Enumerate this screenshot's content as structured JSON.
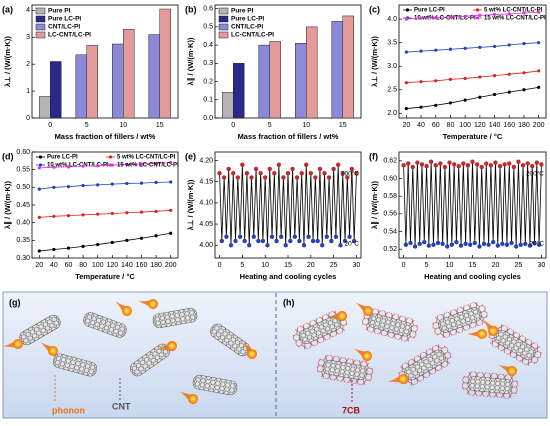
{
  "chart_data": [
    {
      "type": "bar",
      "label": "(a)",
      "xlabel": "Mass fraction of fillers / wt%",
      "ylabel": "λ⊥ / (W/(m·K))",
      "categories": [
        "0",
        "5",
        "10",
        "15"
      ],
      "ylim": [
        0,
        4.2
      ],
      "yticks": [
        0,
        1,
        2,
        3,
        4
      ],
      "legend": "upper left",
      "series": [
        {
          "name": "Pure PI",
          "color": "#b5b5b5",
          "values": [
            0.8,
            null,
            null,
            null
          ]
        },
        {
          "name": "Pure LC-PI",
          "color": "#2a2a8a",
          "values": [
            2.1,
            null,
            null,
            null
          ]
        },
        {
          "name": "CNT/LC-PI",
          "color": "#8a8ad8",
          "values": [
            null,
            2.35,
            2.75,
            3.1
          ]
        },
        {
          "name": "LC-CNT/LC-PI",
          "color": "#e39a9a",
          "values": [
            null,
            2.7,
            3.3,
            4.05
          ]
        }
      ]
    },
    {
      "type": "bar",
      "label": "(b)",
      "xlabel": "Mass fraction of fillers / wt%",
      "ylabel": "λ∥ / (W/(m·K))",
      "categories": [
        "0",
        "5",
        "10",
        "15"
      ],
      "ylim": [
        0,
        0.62
      ],
      "yticks": [
        {
          "value": 0,
          "label": "0.0"
        },
        0.1,
        0.2,
        0.3,
        0.4,
        0.5,
        0.6
      ],
      "legend": "upper left",
      "series": [
        {
          "name": "Pure PI",
          "color": "#b5b5b5",
          "values": [
            0.14,
            null,
            null,
            null
          ]
        },
        {
          "name": "Pure LC-PI",
          "color": "#2a2a8a",
          "values": [
            0.3,
            null,
            null,
            null
          ]
        },
        {
          "name": "CNT/LC-PI",
          "color": "#8a8ad8",
          "values": [
            null,
            0.4,
            0.41,
            0.53
          ]
        },
        {
          "name": "LC-CNT/LC-PI",
          "color": "#e39a9a",
          "values": [
            null,
            0.42,
            0.5,
            0.56
          ]
        }
      ]
    },
    {
      "type": "line",
      "label": "(c)",
      "xlabel": "Temperature / °C",
      "ylabel": "λ⊥ / (W/(m·K))",
      "x": [
        20,
        40,
        60,
        80,
        100,
        120,
        140,
        160,
        180,
        200
      ],
      "xlim": [
        10,
        210
      ],
      "xticks": [
        20,
        40,
        60,
        80,
        100,
        120,
        140,
        160,
        180,
        200
      ],
      "ylim": [
        1.9,
        4.3
      ],
      "yticks": [
        {
          "value": 2,
          "label": "2.0"
        },
        2.5,
        {
          "value": 3,
          "label": "3.0"
        },
        3.5,
        {
          "value": 4,
          "label": "4.0"
        }
      ],
      "legend": "upper",
      "series": [
        {
          "name": "Pure LC-PI",
          "color": "#000000",
          "values": [
            2.1,
            2.13,
            2.17,
            2.22,
            2.28,
            2.34,
            2.4,
            2.45,
            2.5,
            2.55
          ]
        },
        {
          "name": "5 wt% LC-CNT/LC-PI",
          "color": "#e02020",
          "values": [
            2.65,
            2.67,
            2.69,
            2.72,
            2.74,
            2.77,
            2.8,
            2.83,
            2.86,
            2.9
          ]
        },
        {
          "name": "10 wt% LC-CNT/LC-PI",
          "color": "#2040c0",
          "values": [
            3.3,
            3.32,
            3.34,
            3.36,
            3.38,
            3.4,
            3.42,
            3.45,
            3.48,
            3.5
          ]
        },
        {
          "name": "15 wt% LC-CNT/LC-PI",
          "color": "#e030e0",
          "values": [
            4.0,
            4.02,
            4.03,
            4.05,
            4.06,
            4.08,
            4.1,
            4.11,
            4.13,
            4.15
          ]
        }
      ]
    },
    {
      "type": "line",
      "label": "(d)",
      "xlabel": "Temperature / °C",
      "ylabel": "λ∥ / (W/(m·K))",
      "x": [
        20,
        40,
        60,
        80,
        100,
        120,
        140,
        160,
        180,
        200
      ],
      "xlim": [
        10,
        210
      ],
      "xticks": [
        20,
        40,
        60,
        80,
        100,
        120,
        140,
        160,
        180,
        200
      ],
      "ylim": [
        0.3,
        0.6
      ],
      "yticks": [
        {
          "value": 0.3,
          "label": "0.30"
        },
        0.35,
        {
          "value": 0.4,
          "label": "0.40"
        },
        0.45,
        {
          "value": 0.5,
          "label": "0.50"
        },
        0.55,
        {
          "value": 0.6,
          "label": "0.60"
        }
      ],
      "legend": "upper",
      "series": [
        {
          "name": "Pure LC-PI",
          "color": "#000000",
          "values": [
            0.32,
            0.324,
            0.328,
            0.333,
            0.338,
            0.344,
            0.35,
            0.356,
            0.363,
            0.37
          ]
        },
        {
          "name": "5 wt% LC-CNT/LC-PI",
          "color": "#e02020",
          "values": [
            0.415,
            0.418,
            0.42,
            0.422,
            0.424,
            0.426,
            0.428,
            0.43,
            0.432,
            0.435
          ]
        },
        {
          "name": "10 wt% LC-CNT/LC-PI",
          "color": "#2040c0",
          "values": [
            0.495,
            0.5,
            0.502,
            0.505,
            0.507,
            0.509,
            0.511,
            0.512,
            0.514,
            0.515
          ]
        },
        {
          "name": "15 wt% LC-CNT/LC-PI",
          "color": "#e030e0",
          "values": [
            0.555,
            0.557,
            0.558,
            0.56,
            0.561,
            0.563,
            0.565,
            0.566,
            0.568,
            0.57
          ]
        }
      ]
    },
    {
      "type": "line",
      "label": "(e)",
      "xlabel": "Heating and cooling cycles",
      "ylabel": "λ⊥ / (W/(m·K))",
      "annotations": [
        "200°C",
        "20°C"
      ],
      "marker_colors": [
        "#e02020",
        "#2040d0"
      ],
      "x": [
        0,
        0.5,
        1,
        1.5,
        2,
        2.5,
        3,
        3.5,
        4,
        4.5,
        5,
        5.5,
        6,
        6.5,
        7,
        7.5,
        8,
        8.5,
        9,
        9.5,
        10,
        10.5,
        11,
        11.5,
        12,
        12.5,
        13,
        13.5,
        14,
        14.5,
        15,
        15.5,
        16,
        16.5,
        17,
        17.5,
        18,
        18.5,
        19,
        19.5,
        20,
        20.5,
        21,
        21.5,
        22,
        22.5,
        23,
        23.5,
        24,
        24.5,
        25,
        25.5,
        26,
        26.5,
        27,
        27.5,
        28,
        28.5,
        29,
        29.5,
        30
      ],
      "xlim": [
        -1,
        31
      ],
      "xticks": [
        0,
        5,
        10,
        15,
        20,
        25,
        30
      ],
      "ylim": [
        3.97,
        4.22
      ],
      "yticks": [
        {
          "value": 4,
          "label": "4.00"
        },
        4.05,
        {
          "value": 4.1,
          "label": "4.10"
        },
        4.15,
        {
          "value": 4.2,
          "label": "4.20"
        }
      ],
      "series": [
        {
          "color": "#000000",
          "values": [
            4.17,
            4.01,
            4.16,
            4.02,
            4.18,
            4.0,
            4.17,
            4.01,
            4.16,
            4.02,
            4.19,
            4.01,
            4.17,
            4.0,
            4.16,
            4.02,
            4.18,
            4.01,
            4.17,
            4.01,
            4.16,
            4.0,
            4.18,
            4.02,
            4.17,
            4.01,
            4.19,
            4.02,
            4.16,
            4.0,
            4.17,
            4.01,
            4.18,
            4.02,
            4.16,
            4.01,
            4.17,
            4.0,
            4.19,
            4.02,
            4.17,
            4.01,
            4.16,
            4.01,
            4.18,
            4.0,
            4.17,
            4.02,
            4.16,
            4.01,
            4.18,
            4.02,
            4.19,
            4.0,
            4.17,
            4.01,
            4.16,
            4.02,
            4.18,
            4.01,
            4.17
          ]
        }
      ]
    },
    {
      "type": "line",
      "label": "(f)",
      "xlabel": "Heating and cooling cycles",
      "ylabel": "λ∥ / (W/(m·K))",
      "annotations": [
        "200°C",
        "20°C"
      ],
      "marker_colors": [
        "#e02020",
        "#2040d0"
      ],
      "x": [
        0,
        0.5,
        1,
        1.5,
        2,
        2.5,
        3,
        3.5,
        4,
        4.5,
        5,
        5.5,
        6,
        6.5,
        7,
        7.5,
        8,
        8.5,
        9,
        9.5,
        10,
        10.5,
        11,
        11.5,
        12,
        12.5,
        13,
        13.5,
        14,
        14.5,
        15,
        15.5,
        16,
        16.5,
        17,
        17.5,
        18,
        18.5,
        19,
        19.5,
        20,
        20.5,
        21,
        21.5,
        22,
        22.5,
        23,
        23.5,
        24,
        24.5,
        25,
        25.5,
        26,
        26.5,
        27,
        27.5,
        28,
        28.5,
        29,
        29.5,
        30
      ],
      "xlim": [
        -1,
        31
      ],
      "xticks": [
        0,
        5,
        10,
        15,
        20,
        25,
        30
      ],
      "ylim": [
        0.51,
        0.63
      ],
      "yticks": [
        0.52,
        0.54,
        0.56,
        0.58,
        {
          "value": 0.6,
          "label": "0.60"
        },
        0.62
      ],
      "series": [
        {
          "color": "#000000",
          "values": [
            0.615,
            0.525,
            0.617,
            0.527,
            0.613,
            0.523,
            0.618,
            0.526,
            0.616,
            0.528,
            0.614,
            0.524,
            0.619,
            0.525,
            0.615,
            0.527,
            0.617,
            0.526,
            0.613,
            0.523,
            0.618,
            0.525,
            0.616,
            0.528,
            0.614,
            0.524,
            0.617,
            0.526,
            0.615,
            0.525,
            0.619,
            0.527,
            0.616,
            0.523,
            0.613,
            0.526,
            0.617,
            0.525,
            0.615,
            0.528,
            0.618,
            0.524,
            0.614,
            0.526,
            0.616,
            0.525,
            0.617,
            0.527,
            0.613,
            0.523,
            0.619,
            0.525,
            0.615,
            0.526,
            0.617,
            0.524,
            0.614,
            0.527,
            0.618,
            0.525,
            0.616
          ]
        }
      ]
    }
  ],
  "illustrations": {
    "g": {
      "label": "(g)",
      "phonon": "phonon",
      "cnt": "CNT"
    },
    "h": {
      "label": "(h)",
      "molecule": "7CB"
    }
  }
}
